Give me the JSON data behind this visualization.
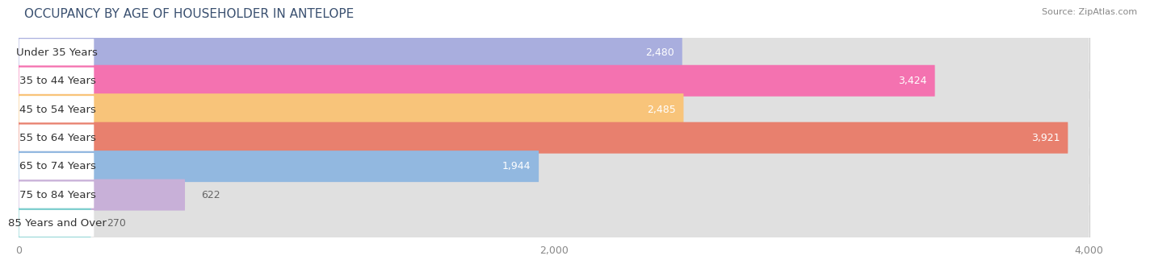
{
  "title": "OCCUPANCY BY AGE OF HOUSEHOLDER IN ANTELOPE",
  "source": "Source: ZipAtlas.com",
  "categories": [
    "Under 35 Years",
    "35 to 44 Years",
    "45 to 54 Years",
    "55 to 64 Years",
    "65 to 74 Years",
    "75 to 84 Years",
    "85 Years and Over"
  ],
  "values": [
    2480,
    3424,
    2485,
    3921,
    1944,
    622,
    270
  ],
  "bar_colors": [
    "#a9aede",
    "#f472b0",
    "#f8c47a",
    "#e8806e",
    "#92b8e0",
    "#c8b0d8",
    "#7ecece"
  ],
  "background_color": "#ffffff",
  "row_bg_color": "#e8e8e8",
  "xlim_max": 4200,
  "data_max": 4000,
  "xticks": [
    0,
    2000,
    4000
  ],
  "title_fontsize": 11,
  "label_fontsize": 9.5,
  "value_fontsize": 9,
  "bar_height": 0.55,
  "label_threshold": 1200
}
